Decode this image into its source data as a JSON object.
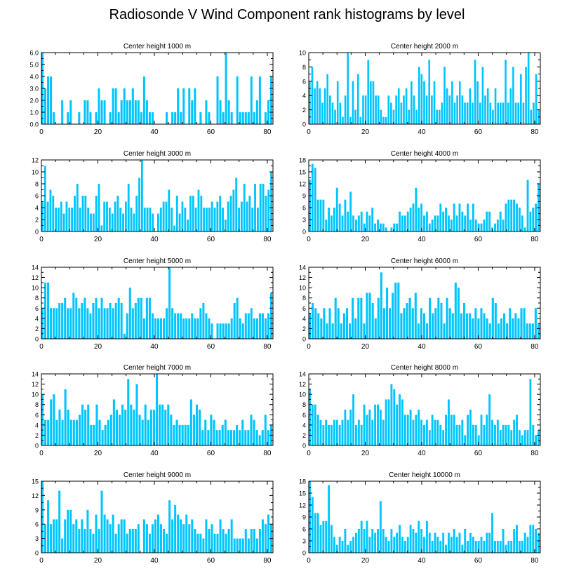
{
  "title": "Radiosonde V Wind Component rank histograms by level",
  "colors": {
    "bar": "#00C5FF",
    "axis": "#000000",
    "background": "#FFFFFF"
  },
  "chart_data": [
    {
      "type": "bar",
      "title": "Center height 1000 m",
      "xlim": [
        0,
        82
      ],
      "ylim": [
        0,
        6
      ],
      "xticks": [
        0,
        20,
        40,
        60,
        80
      ],
      "yticks": [
        0,
        1,
        2,
        3,
        4,
        5,
        6
      ],
      "ytick_labels": [
        "0.0",
        "1.0",
        "2.0",
        "3.0",
        "4.0",
        "5.0",
        "6.0"
      ],
      "values": [
        6,
        3,
        4,
        4,
        1,
        0,
        0,
        2,
        0,
        1,
        2,
        0,
        0,
        1,
        0,
        2,
        2,
        1,
        0,
        1,
        3,
        2,
        2,
        0,
        1,
        3,
        3,
        1,
        2,
        3,
        2,
        2,
        3,
        2,
        2,
        1,
        4,
        2,
        1,
        1,
        0,
        0,
        0,
        0,
        1,
        0,
        1,
        1,
        3,
        1,
        3,
        0,
        3,
        2,
        3,
        0,
        1,
        0,
        2,
        1,
        0,
        0,
        4,
        2,
        1,
        6,
        2,
        1,
        0,
        4,
        1,
        1,
        1,
        1,
        4,
        1,
        2,
        4,
        0,
        1,
        2,
        4
      ]
    },
    {
      "type": "bar",
      "title": "Center height 2000 m",
      "xlim": [
        0,
        82
      ],
      "ylim": [
        0,
        10
      ],
      "xticks": [
        0,
        20,
        40,
        60,
        80
      ],
      "yticks": [
        0,
        2,
        4,
        6,
        8,
        10
      ],
      "values": [
        6,
        8,
        5,
        6,
        5,
        3,
        5,
        7,
        4,
        3,
        2,
        6,
        3,
        1,
        4,
        10,
        1,
        6,
        2,
        7,
        1,
        4,
        4,
        9,
        6,
        6,
        4,
        4,
        2,
        1,
        1,
        4,
        3,
        2,
        4,
        5,
        3,
        4,
        5,
        2,
        6,
        4,
        2,
        8,
        7,
        6,
        4,
        9,
        4,
        6,
        2,
        2,
        3,
        8,
        5,
        4,
        6,
        3,
        4,
        6,
        4,
        3,
        3,
        5,
        3,
        9,
        6,
        3,
        8,
        4,
        5,
        3,
        2,
        5,
        3,
        3,
        3,
        9,
        3,
        5,
        8,
        3,
        3,
        7,
        3,
        8,
        10,
        2,
        3,
        7,
        2
      ]
    },
    {
      "type": "bar",
      "title": "Center height 3000 m",
      "xlim": [
        0,
        82
      ],
      "ylim": [
        0,
        12
      ],
      "xticks": [
        0,
        20,
        40,
        60,
        80
      ],
      "yticks": [
        0,
        2,
        4,
        6,
        8,
        10,
        12
      ],
      "values": [
        5,
        11,
        5,
        7,
        6,
        4,
        4,
        5,
        3,
        5,
        4,
        4,
        6,
        8,
        4,
        6,
        6,
        4,
        3,
        3,
        6,
        8,
        1,
        5,
        5,
        4,
        3,
        5,
        6,
        4,
        3,
        5,
        8,
        4,
        3,
        6,
        9,
        12,
        4,
        4,
        4,
        3,
        0,
        3,
        4,
        5,
        5,
        7,
        4,
        1,
        6,
        3,
        5,
        4,
        2,
        6,
        6,
        4,
        7,
        6,
        4,
        4,
        4,
        5,
        4,
        5,
        6,
        4,
        2,
        5,
        6,
        7,
        9,
        4,
        5,
        8,
        5,
        6,
        4,
        8,
        4,
        8,
        8,
        6,
        7,
        10
      ]
    },
    {
      "type": "bar",
      "title": "Center height 4000 m",
      "xlim": [
        0,
        82
      ],
      "ylim": [
        0,
        18
      ],
      "xticks": [
        0,
        20,
        40,
        60,
        80
      ],
      "yticks": [
        0,
        3,
        6,
        9,
        12,
        15,
        18
      ],
      "values": [
        13,
        17,
        16,
        8,
        8,
        8,
        3,
        6,
        4,
        6,
        11,
        7,
        4,
        8,
        5,
        10,
        4,
        3,
        4,
        5,
        2,
        5,
        4,
        6,
        2,
        3,
        2,
        2,
        1,
        0,
        1,
        2,
        2,
        5,
        4,
        4,
        5,
        6,
        7,
        11,
        6,
        7,
        4,
        5,
        2,
        3,
        4,
        4,
        7,
        5,
        6,
        4,
        3,
        7,
        4,
        7,
        5,
        4,
        7,
        3,
        7,
        3,
        2,
        2,
        3,
        5,
        5,
        1,
        2,
        3,
        5,
        3,
        7,
        8,
        8,
        8,
        7,
        6,
        4,
        1,
        13,
        5,
        6,
        7,
        12
      ]
    },
    {
      "type": "bar",
      "title": "Center height 5000 m",
      "xlim": [
        0,
        82
      ],
      "ylim": [
        0,
        14
      ],
      "xticks": [
        0,
        20,
        40,
        60,
        80
      ],
      "yticks": [
        0,
        2,
        4,
        6,
        8,
        10,
        12,
        14
      ],
      "values": [
        6,
        11,
        11,
        6,
        6,
        6,
        7,
        7,
        8,
        6,
        6,
        9,
        8,
        6,
        7,
        8,
        6,
        5,
        7,
        8,
        6,
        8,
        6,
        6,
        7,
        6,
        7,
        8,
        7,
        1,
        5,
        10,
        6,
        7,
        8,
        8,
        4,
        8,
        8,
        5,
        4,
        4,
        4,
        4,
        6,
        14,
        6,
        5,
        5,
        5,
        4,
        4,
        4,
        5,
        4,
        4,
        6,
        7,
        5,
        4,
        3,
        0,
        3,
        3,
        3,
        3,
        3,
        4,
        7,
        8,
        4,
        3,
        5,
        5,
        6,
        4,
        4,
        5,
        5,
        4,
        5,
        9
      ]
    },
    {
      "type": "bar",
      "title": "Center height 6000 m",
      "xlim": [
        0,
        82
      ],
      "ylim": [
        0,
        14
      ],
      "xticks": [
        0,
        20,
        40,
        60,
        80
      ],
      "yticks": [
        0,
        2,
        4,
        6,
        8,
        10,
        12,
        14
      ],
      "values": [
        5,
        7,
        6,
        5,
        4,
        6,
        3,
        6,
        3,
        8,
        6,
        3,
        5,
        6,
        3,
        8,
        4,
        8,
        8,
        3,
        9,
        9,
        7,
        4,
        8,
        13,
        6,
        10,
        6,
        9,
        11,
        11,
        5,
        6,
        7,
        8,
        6,
        9,
        3,
        6,
        5,
        3,
        8,
        5,
        6,
        8,
        7,
        3,
        8,
        6,
        5,
        11,
        10,
        5,
        7,
        5,
        5,
        4,
        6,
        4,
        6,
        5,
        4,
        3,
        8,
        7,
        3,
        4,
        5,
        3,
        6,
        4,
        5,
        4,
        6,
        6,
        3,
        3,
        3,
        6,
        3
      ]
    },
    {
      "type": "bar",
      "title": "Center height 7000 m",
      "xlim": [
        0,
        82
      ],
      "ylim": [
        0,
        14
      ],
      "xticks": [
        0,
        20,
        40,
        60,
        80
      ],
      "yticks": [
        0,
        2,
        4,
        6,
        8,
        10,
        12,
        14
      ],
      "values": [
        10,
        5,
        5,
        9,
        10,
        5,
        7,
        5,
        11,
        7,
        5,
        5,
        5,
        6,
        8,
        7,
        8,
        4,
        4,
        8,
        5,
        3,
        4,
        5,
        6,
        9,
        7,
        6,
        8,
        7,
        13,
        8,
        7,
        12,
        6,
        5,
        8,
        5,
        7,
        7,
        14,
        8,
        8,
        7,
        8,
        6,
        4,
        5,
        4,
        4,
        4,
        4,
        9,
        6,
        8,
        7,
        3,
        5,
        3,
        6,
        5,
        3,
        3,
        4,
        5,
        3,
        3,
        3,
        4,
        3,
        5,
        3,
        3,
        6,
        5,
        3,
        2,
        3,
        6,
        3,
        4
      ]
    },
    {
      "type": "bar",
      "title": "Center height 8000 m",
      "xlim": [
        0,
        82
      ],
      "ylim": [
        0,
        14
      ],
      "xticks": [
        0,
        20,
        40,
        60,
        80
      ],
      "yticks": [
        0,
        2,
        4,
        6,
        8,
        10,
        12,
        14
      ],
      "values": [
        11,
        8,
        8,
        6,
        5,
        4,
        5,
        4,
        4,
        5,
        5,
        4,
        5,
        7,
        5,
        7,
        10,
        4,
        5,
        4,
        8,
        6,
        7,
        5,
        8,
        8,
        7,
        5,
        9,
        9,
        12,
        11,
        8,
        10,
        9,
        6,
        6,
        7,
        5,
        6,
        7,
        5,
        4,
        5,
        3,
        6,
        5,
        5,
        4,
        3,
        6,
        9,
        6,
        6,
        4,
        4,
        5,
        2,
        6,
        7,
        4,
        4,
        2,
        6,
        4,
        6,
        10,
        5,
        4,
        5,
        3,
        4,
        4,
        4,
        3,
        5,
        6,
        3,
        2,
        3,
        3,
        13,
        4,
        2,
        3
      ]
    },
    {
      "type": "bar",
      "title": "Center height 9000 m",
      "xlim": [
        0,
        82
      ],
      "ylim": [
        0,
        15
      ],
      "xticks": [
        0,
        20,
        40,
        60,
        80
      ],
      "yticks": [
        0,
        3,
        6,
        9,
        12,
        15
      ],
      "values": [
        15,
        6,
        11,
        6,
        7,
        7,
        13,
        3,
        7,
        9,
        9,
        6,
        7,
        5,
        7,
        5,
        9,
        5,
        4,
        8,
        5,
        13,
        8,
        7,
        6,
        8,
        4,
        6,
        7,
        7,
        4,
        5,
        5,
        5,
        6,
        0,
        7,
        6,
        4,
        6,
        7,
        8,
        6,
        5,
        4,
        11,
        7,
        10,
        8,
        7,
        6,
        8,
        6,
        7,
        5,
        4,
        4,
        3,
        7,
        5,
        6,
        4,
        4,
        7,
        5,
        4,
        5,
        7,
        3,
        3,
        3,
        3,
        5,
        3,
        5,
        5,
        3,
        5,
        7,
        6,
        8,
        6
      ]
    },
    {
      "type": "bar",
      "title": "Center height 10000 m",
      "xlim": [
        0,
        82
      ],
      "ylim": [
        0,
        18
      ],
      "xticks": [
        0,
        20,
        40,
        60,
        80
      ],
      "yticks": [
        0,
        3,
        6,
        9,
        12,
        15,
        18
      ],
      "values": [
        18,
        14,
        10,
        10,
        7,
        8,
        8,
        17,
        7,
        4,
        2,
        4,
        3,
        6,
        2,
        3,
        4,
        5,
        6,
        8,
        6,
        8,
        4,
        6,
        5,
        6,
        13,
        6,
        4,
        3,
        6,
        4,
        5,
        7,
        4,
        3,
        4,
        7,
        6,
        5,
        8,
        6,
        4,
        8,
        5,
        3,
        5,
        4,
        3,
        5,
        2,
        5,
        4,
        6,
        4,
        5,
        2,
        6,
        3,
        5,
        4,
        3,
        3,
        4,
        3,
        5,
        5,
        10,
        3,
        3,
        3,
        6,
        2,
        3,
        3,
        6,
        7,
        3,
        3,
        5,
        4,
        7,
        7,
        6,
        5
      ]
    }
  ]
}
